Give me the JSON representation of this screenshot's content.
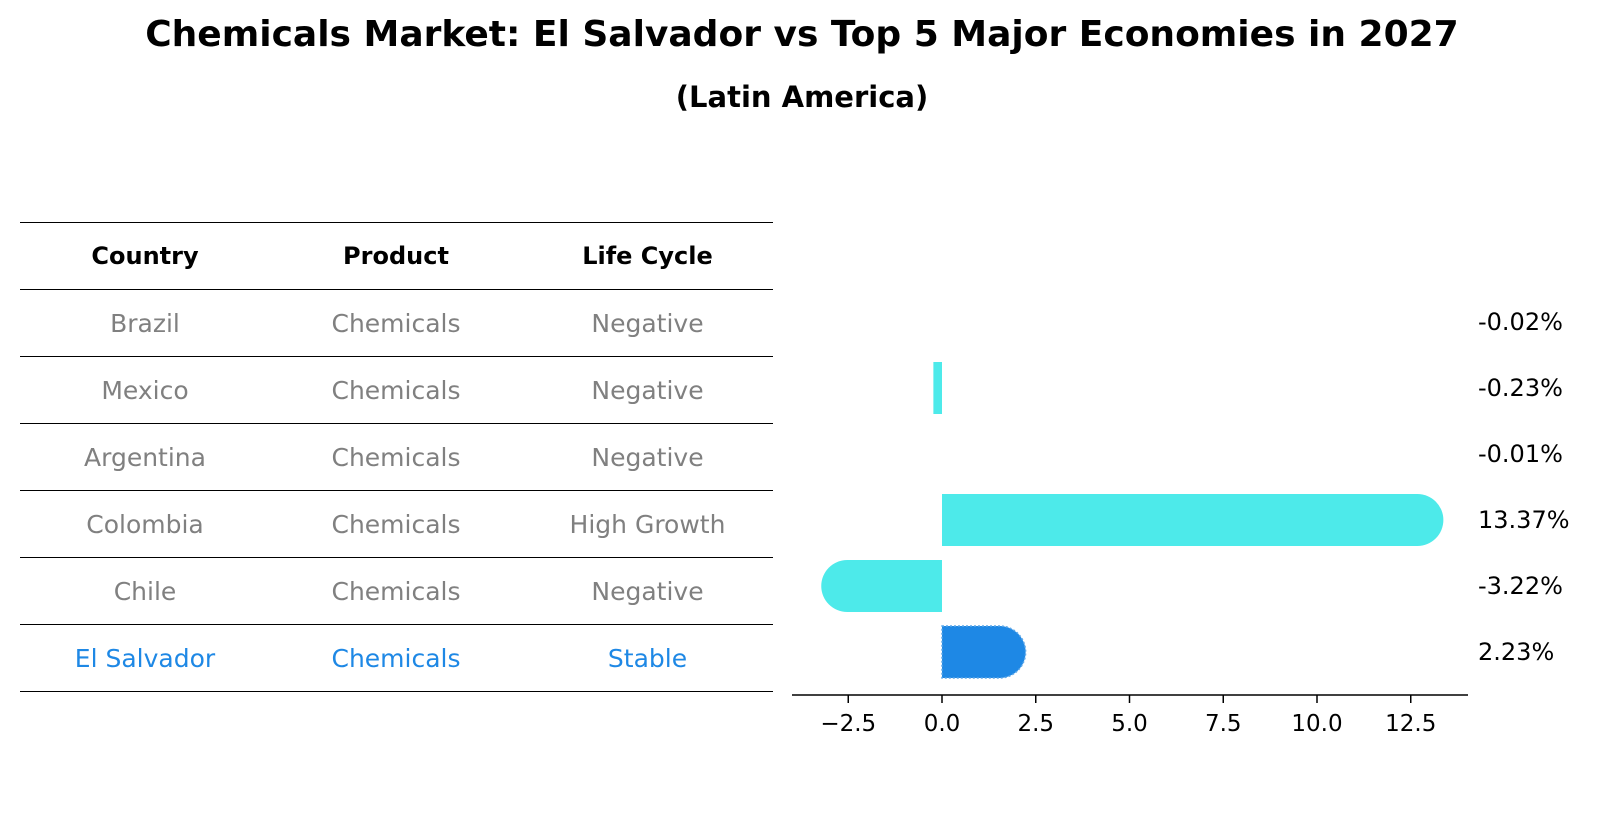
{
  "header": {
    "title": "Chemicals Market: El Salvador vs Top 5 Major Economies in 2027",
    "subtitle": "(Latin America)"
  },
  "table": {
    "columns": [
      "Country",
      "Product",
      "Life Cycle"
    ],
    "rows": [
      [
        "Brazil",
        "Chemicals",
        "Negative"
      ],
      [
        "Mexico",
        "Chemicals",
        "Negative"
      ],
      [
        "Argentina",
        "Chemicals",
        "Negative"
      ],
      [
        "Colombia",
        "Chemicals",
        "High Growth"
      ],
      [
        "Chile",
        "Chemicals",
        "Negative"
      ],
      [
        "El Salvador",
        "Chemicals",
        "Stable"
      ]
    ]
  },
  "colors": {
    "bar": "#4deaea",
    "highlight": "#1e88e5",
    "table_text": "#808080"
  },
  "chart_data": {
    "type": "bar",
    "orientation": "horizontal",
    "categories": [
      "Brazil",
      "Mexico",
      "Argentina",
      "Colombia",
      "Chile",
      "El Salvador"
    ],
    "values": [
      -0.02,
      -0.23,
      -0.01,
      13.37,
      -3.22,
      2.23
    ],
    "value_labels": [
      "-0.02%",
      "-0.23%",
      "-0.01%",
      "13.37%",
      "-3.22%",
      "2.23%"
    ],
    "highlight_category": "El Salvador",
    "xlim": [
      -4,
      14.3
    ],
    "xticks": [
      -2.5,
      0.0,
      2.5,
      5.0,
      7.5,
      10.0,
      12.5
    ],
    "xtick_labels": [
      "−2.5",
      "0.0",
      "2.5",
      "5.0",
      "7.5",
      "10.0",
      "12.5"
    ],
    "title": "Chemicals Market: El Salvador vs Top 5 Major Economies in 2027",
    "subtitle": "(Latin America)"
  }
}
